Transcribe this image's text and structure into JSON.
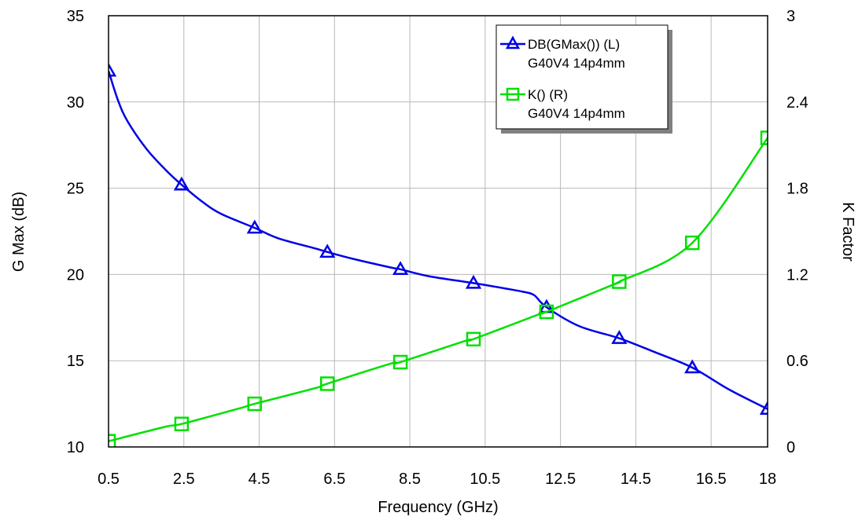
{
  "chart_data": {
    "type": "line",
    "title": "",
    "xlabel": "Frequency (GHz)",
    "ylabel_left": "G Max (dB)",
    "ylabel_right": "K Factor",
    "xlim": [
      0.5,
      18
    ],
    "ylim_left": [
      10,
      35
    ],
    "ylim_right": [
      0,
      3
    ],
    "x_ticks": [
      "0.5",
      "2.5",
      "4.5",
      "6.5",
      "8.5",
      "10.5",
      "12.5",
      "14.5",
      "16.5",
      "18"
    ],
    "y_left_ticks": [
      "10",
      "15",
      "20",
      "25",
      "30",
      "35"
    ],
    "y_right_ticks": [
      "0",
      "0.6",
      "1.2",
      "1.8",
      "2.4",
      "3"
    ],
    "grid": true,
    "legend_position": "top-right",
    "series": [
      {
        "name": "DB(GMax()) (L)",
        "sub": "G40V4 14p4mm",
        "axis": "left",
        "color": "#0000e6",
        "marker": "triangle",
        "x": [
          0.5,
          0.75,
          1.0,
          1.5,
          2.0,
          2.44,
          3.0,
          3.5,
          4.38,
          5.0,
          6.0,
          6.31,
          7.0,
          8.0,
          8.25,
          9.0,
          10.19,
          11.0,
          11.5,
          11.8,
          12.13,
          13.0,
          14.06,
          15.0,
          16.0,
          17.0,
          18.0
        ],
        "y": [
          31.8,
          30.1,
          28.9,
          27.3,
          26.1,
          25.2,
          24.2,
          23.5,
          22.7,
          22.1,
          21.5,
          21.3,
          20.9,
          20.4,
          20.3,
          19.9,
          19.5,
          19.2,
          19.0,
          18.8,
          18.1,
          17.0,
          16.3,
          15.5,
          14.6,
          13.3,
          12.2
        ]
      },
      {
        "name": "K() (R)",
        "sub": "G40V4 14p4mm",
        "axis": "right",
        "color": "#00e000",
        "marker": "square",
        "x": [
          0.5,
          2.0,
          2.44,
          4.0,
          4.38,
          6.0,
          6.31,
          8.0,
          8.25,
          10.0,
          10.19,
          12.0,
          12.13,
          14.0,
          14.06,
          16.0,
          18.0
        ],
        "y": [
          0.04,
          0.14,
          0.16,
          0.27,
          0.3,
          0.41,
          0.44,
          0.58,
          0.59,
          0.74,
          0.75,
          0.93,
          0.94,
          1.14,
          1.15,
          1.42,
          2.15
        ],
        "marker_x": [
          0.5,
          2.44,
          4.38,
          6.31,
          8.25,
          10.19,
          12.13,
          14.06,
          16.0,
          18.0
        ]
      }
    ]
  }
}
